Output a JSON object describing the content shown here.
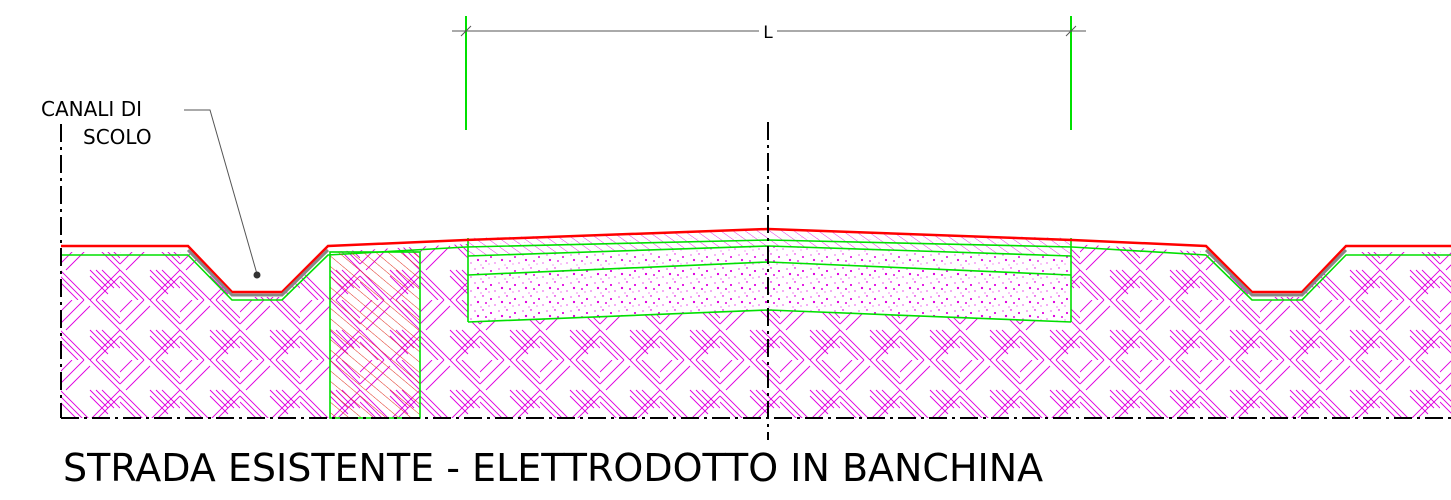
{
  "dimension": {
    "label": "L"
  },
  "callout": {
    "line1": "CANALI  DI",
    "line2": "SCOLO"
  },
  "title": "STRADA ESISTENTE - ELETTRODOTTO IN BANCHINA",
  "colors": {
    "surface": "#ff0000",
    "layer_outline": "#00e000",
    "hatch_ground": "#e000e0",
    "hatch_fill_red": "#e03020",
    "axis": "#000000"
  },
  "icons": [
    "ground-hatch",
    "concrete-stipple",
    "diagonal-red-hatch",
    "dimension-tick"
  ]
}
